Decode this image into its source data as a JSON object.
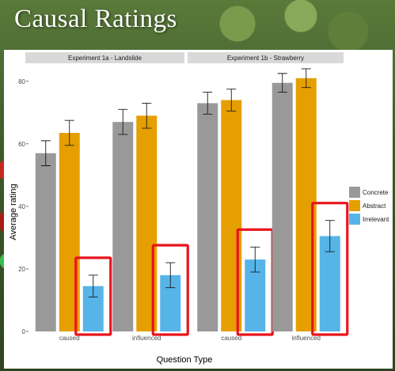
{
  "slide": {
    "title": "Causal Ratings"
  },
  "chart_data": {
    "type": "bar",
    "xlabel": "Question Type",
    "ylabel": "Average rating",
    "ylim": [
      0,
      85
    ],
    "yticks": [
      0,
      20,
      40,
      60,
      80
    ],
    "categories": [
      "caused",
      "influenced"
    ],
    "legend_position": "right",
    "series_names": [
      "Concrete",
      "Abstract",
      "Irrelevant"
    ],
    "colors": {
      "Concrete": "#999999",
      "Abstract": "#e69f00",
      "Irrelevant": "#56b4e9"
    },
    "highlight": {
      "series": "Irrelevant",
      "color": "#e8141c"
    },
    "facets": [
      {
        "label": "Experiment 1a - Landslide",
        "series": [
          {
            "name": "Concrete",
            "values": [
              57,
              67
            ],
            "err": [
              4,
              4
            ]
          },
          {
            "name": "Abstract",
            "values": [
              63.5,
              69
            ],
            "err": [
              4,
              4
            ]
          },
          {
            "name": "Irrelevant",
            "values": [
              14.5,
              18
            ],
            "err": [
              3.5,
              4
            ]
          }
        ]
      },
      {
        "label": "Experiment 1b - Strawberry",
        "series": [
          {
            "name": "Concrete",
            "values": [
              73,
              79.5
            ],
            "err": [
              3.5,
              3
            ]
          },
          {
            "name": "Abstract",
            "values": [
              74,
              81
            ],
            "err": [
              3.5,
              3
            ]
          },
          {
            "name": "Irrelevant",
            "values": [
              23,
              30.5
            ],
            "err": [
              4,
              5
            ]
          }
        ]
      }
    ]
  }
}
